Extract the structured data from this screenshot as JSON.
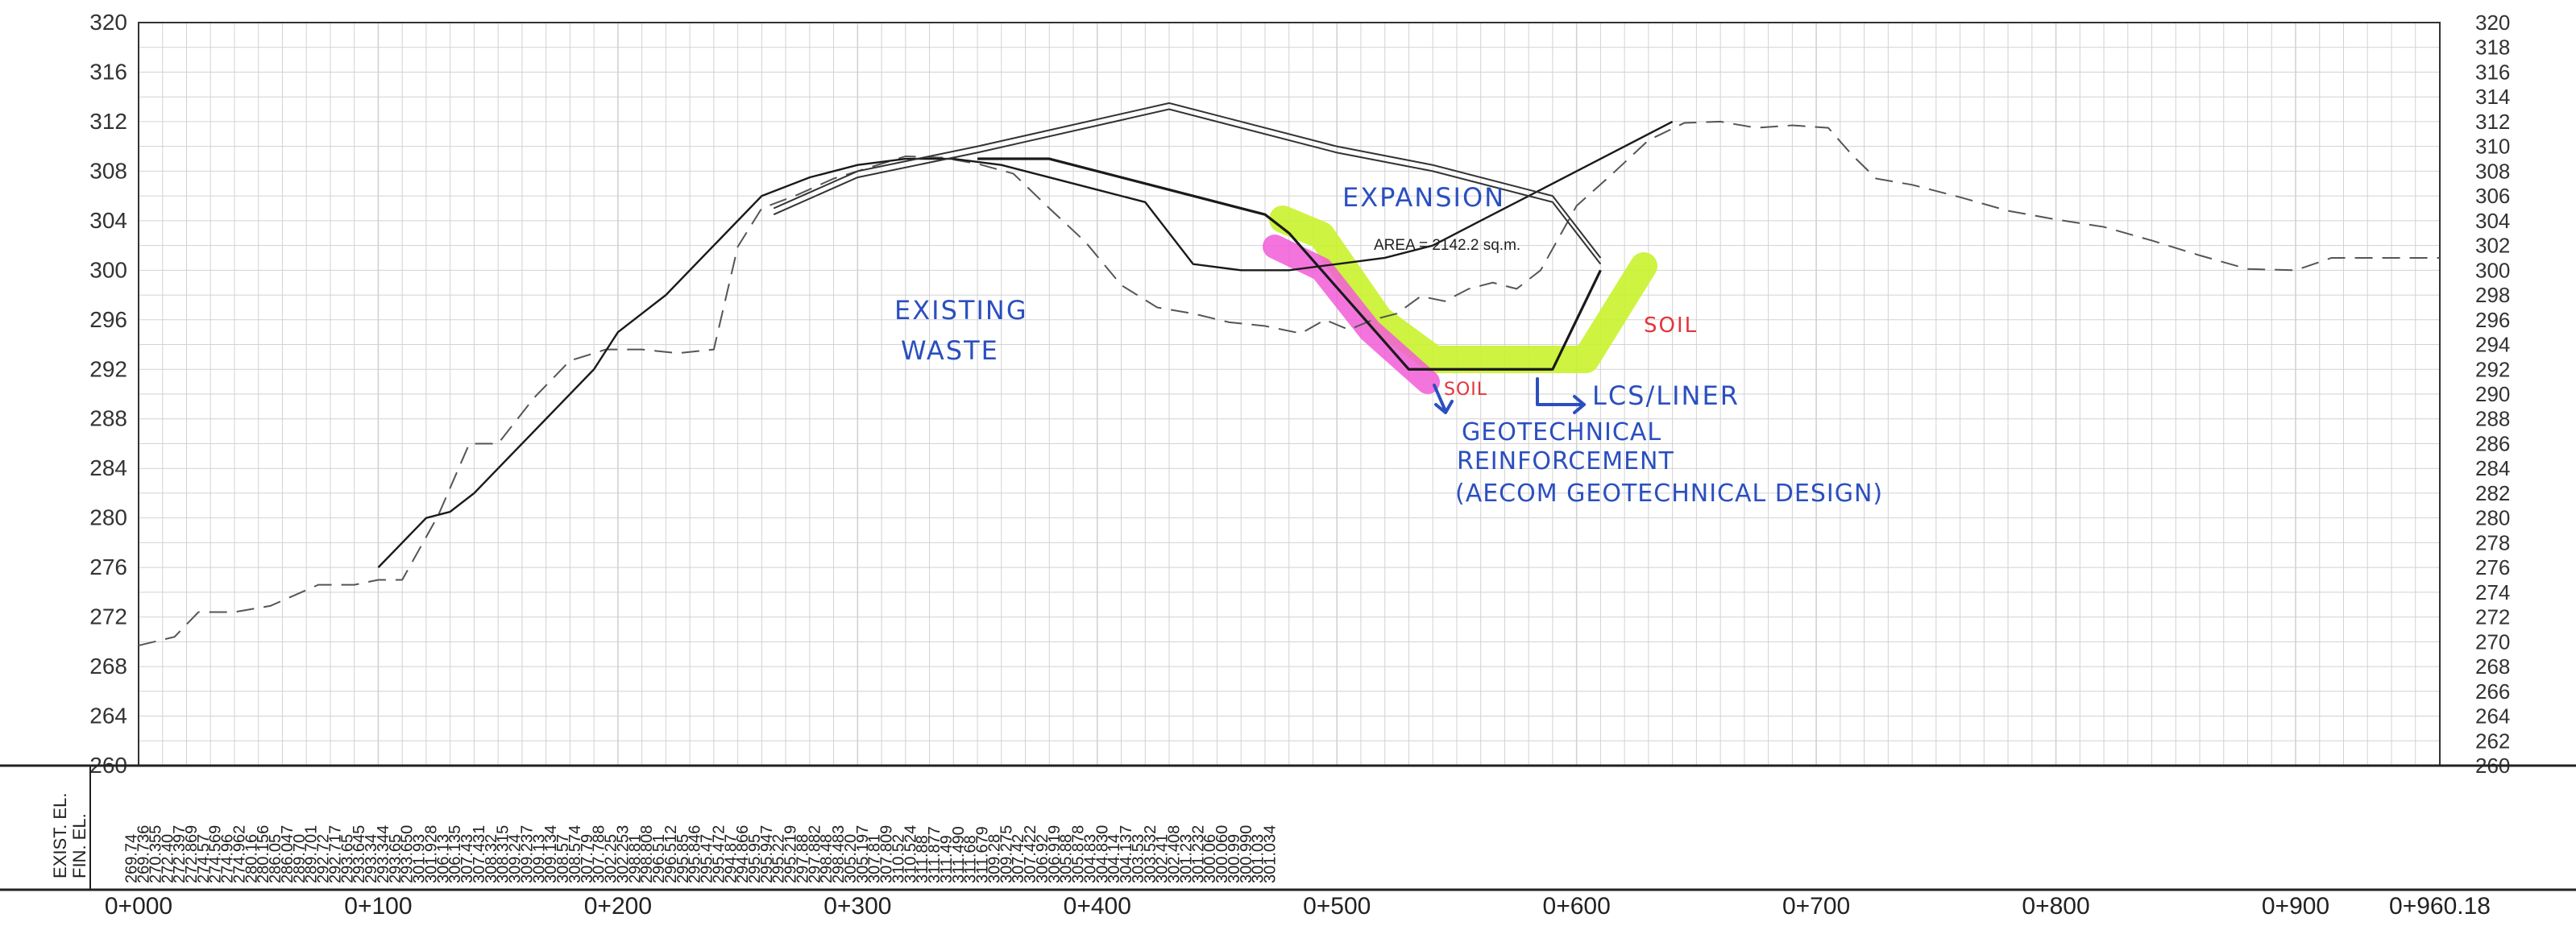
{
  "elevation_scale": {
    "left_labels": [
      "320",
      "316",
      "312",
      "308",
      "304",
      "300",
      "296",
      "292",
      "288",
      "284",
      "280",
      "276",
      "272",
      "268",
      "264",
      "260"
    ],
    "right_labels": [
      "320",
      "318",
      "316",
      "314",
      "312",
      "310",
      "308",
      "306",
      "304",
      "302",
      "300",
      "298",
      "296",
      "294",
      "292",
      "290",
      "288",
      "286",
      "284",
      "282",
      "280",
      "278",
      "276",
      "274",
      "272",
      "270",
      "268",
      "266",
      "264",
      "262",
      "260"
    ]
  },
  "row_labels": {
    "existing": "EXIST. EL.",
    "finish": "FIN. EL."
  },
  "station_labels": [
    "0+000",
    "0+100",
    "0+200",
    "0+300",
    "0+400",
    "0+500",
    "0+600",
    "0+700",
    "0+800",
    "0+900",
    "0+960.18"
  ],
  "elevation_table": [
    "269.74",
    "269.736",
    "270.355",
    "272.40",
    "272.397",
    "272.869",
    "274.57",
    "274.569",
    "274.96",
    "274.962",
    "280.16",
    "280.156",
    "286.05",
    "286.047",
    "289.70",
    "289.701",
    "292.72",
    "292.717",
    "293.65",
    "293.645",
    "293.34",
    "293.344",
    "293.65",
    "293.650",
    "301.93",
    "301.928",
    "306.13",
    "306.135",
    "307.43",
    "307.431",
    "308.32",
    "308.315",
    "309.24",
    "309.237",
    "309.13",
    "309.134",
    "308.57",
    "308.574",
    "307.79",
    "307.788",
    "302.25",
    "302.253",
    "298.81",
    "298.808",
    "296.51",
    "296.512",
    "295.85",
    "295.846",
    "295.47",
    "295.472",
    "294.87",
    "294.866",
    "295.95",
    "295.947",
    "295.22",
    "295.219",
    "297.88",
    "297.882",
    "298.48",
    "298.483",
    "305.20",
    "305.197",
    "307.81",
    "307.809",
    "310.52",
    "310.524",
    "311.88",
    "311.877",
    "311.49",
    "311.490",
    "311.68",
    "311.679",
    "309.28",
    "309.275",
    "307.42",
    "307.422",
    "306.92",
    "306.919",
    "305.88",
    "305.878",
    "304.83",
    "304.830",
    "304.14",
    "304.137",
    "303.53",
    "303.532",
    "302.41",
    "302.408",
    "301.23",
    "301.232",
    "300.06",
    "300.060",
    "300.99",
    "300.990",
    "301.03",
    "301.034"
  ],
  "annotations": {
    "area": "AREA =   2142.2  sq.m.",
    "expansion": "EXPANSION",
    "existing_waste_1": "EXISTING",
    "existing_waste_2": "WASTE",
    "soil_right": "SOIL",
    "soil_left": "SOIL",
    "liner": "LCS/LINER",
    "geo_1": "GEOTECHNICAL",
    "geo_2": "REINFORCEMENT",
    "geo_3": "(AECOM GEOTECHNICAL DESIGN)"
  },
  "colors": {
    "ink_blue": "#2b4fbf",
    "soil_red": "#e5333a",
    "highlight_green": "#c9f22c",
    "highlight_pink": "#f25cd8",
    "grid": "#d2d2d2",
    "line": "#222222"
  },
  "chart_data": {
    "type": "line",
    "title": "",
    "xlabel": "",
    "ylabel": "",
    "xlim": [
      0,
      960.18
    ],
    "ylim": [
      260,
      320
    ],
    "grid": true,
    "series": [
      {
        "x": [
          0,
          15,
          25,
          40,
          55,
          75,
          90,
          100,
          110,
          125,
          138,
          150,
          165,
          180,
          195,
          210,
          225,
          240,
          250,
          260,
          275,
          290,
          305,
          320,
          335,
          350,
          365,
          380,
          395,
          410,
          425,
          440,
          455,
          470,
          485,
          495,
          505,
          515,
          525,
          535,
          545,
          555,
          565,
          575,
          585,
          600,
          615,
          630,
          645,
          660,
          675,
          690,
          705,
          715,
          725,
          740,
          760,
          780,
          800,
          820,
          840,
          860,
          880,
          900,
          915,
          935,
          960.18
        ],
        "y": [
          269.7,
          270.4,
          272.4,
          272.4,
          272.9,
          274.6,
          274.6,
          275.0,
          275.0,
          280.2,
          286.0,
          286.0,
          289.7,
          292.7,
          293.6,
          293.6,
          293.3,
          293.6,
          301.9,
          305.0,
          306.1,
          307.4,
          308.3,
          309.2,
          309.1,
          308.6,
          307.8,
          305.0,
          302.3,
          298.8,
          297.0,
          296.5,
          295.8,
          295.5,
          294.9,
          296.0,
          295.2,
          296.0,
          296.5,
          297.9,
          297.5,
          298.5,
          299.0,
          298.5,
          300.0,
          305.2,
          307.8,
          310.5,
          311.9,
          312.0,
          311.5,
          311.7,
          311.5,
          309.3,
          307.4,
          306.9,
          305.9,
          304.8,
          304.1,
          303.5,
          302.4,
          301.2,
          300.1,
          300.0,
          301.0,
          301.0,
          301.0
        ]
      },
      {
        "x": [
          100,
          110,
          120,
          130,
          140,
          150,
          170,
          190,
          200,
          220,
          240,
          255,
          260,
          280,
          300,
          320,
          340,
          360,
          380,
          400,
          420,
          440,
          460,
          480,
          500,
          520,
          540,
          560,
          580,
          600,
          620,
          640
        ],
        "y": [
          276.0,
          278.0,
          280.0,
          280.5,
          282.0,
          284.0,
          288.0,
          292.0,
          295.0,
          298.0,
          302.0,
          305.0,
          306.0,
          307.5,
          308.5,
          309.0,
          309.0,
          308.5,
          307.5,
          306.5,
          305.5,
          300.5,
          300.0,
          300.0,
          300.5,
          301.0,
          302.0,
          304.0,
          306.0,
          308.0,
          310.0,
          312.0
        ]
      },
      {
        "x": [
          265,
          300,
          350,
          430,
          500,
          540,
          590,
          610
        ],
        "y": [
          304.5,
          307.5,
          309.5,
          313.0,
          309.5,
          308.0,
          305.5,
          300.5
        ]
      },
      {
        "x": [
          265,
          300,
          350,
          430,
          500,
          540,
          590,
          610
        ],
        "y": [
          305.0,
          308.0,
          310.0,
          313.5,
          310.0,
          308.5,
          306.0,
          301.0
        ]
      },
      {
        "x": [
          350,
          380,
          430,
          470,
          480,
          530,
          535,
          590,
          610
        ],
        "y": [
          309.0,
          309.0,
          306.5,
          304.5,
          303.0,
          292.0,
          292.0,
          292.0,
          300.0
        ]
      }
    ]
  }
}
